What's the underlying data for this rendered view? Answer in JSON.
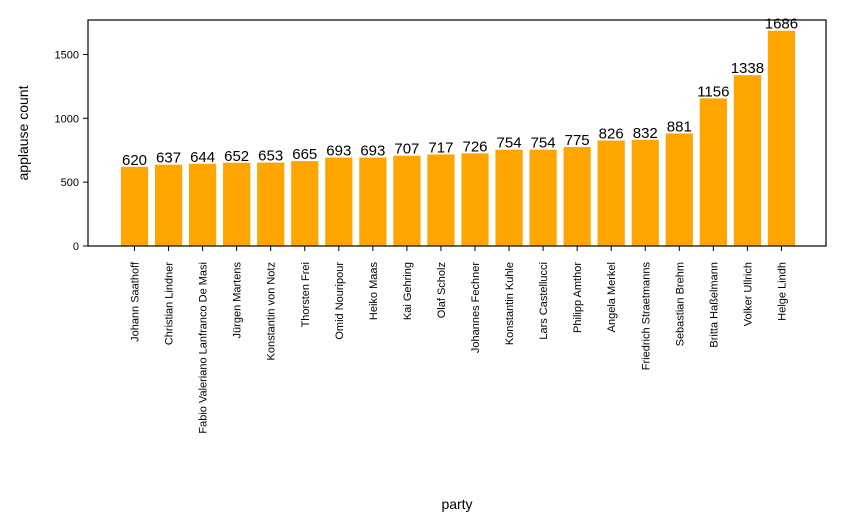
{
  "chart_data": {
    "type": "bar",
    "title": "",
    "xlabel": "party",
    "ylabel": "applause count",
    "ylim": [
      0,
      1770
    ],
    "yticks": [
      0,
      500,
      1000,
      1500
    ],
    "ytick_labels": [
      "0",
      "500",
      "1000",
      "1500"
    ],
    "grid": false,
    "bar_color": "#ffa500",
    "categories": [
      "Johann Saathoff",
      "Christian Lindner",
      "Fabio Valeriano Lanfranco De Masi",
      "Jürgen Martens",
      "Konstantin von Notz",
      "Thorsten Frei",
      "Omid Nouripour",
      "Heiko Maas",
      "Kai Gehring",
      "Olaf Scholz",
      "Johannes Fechner",
      "Konstantin Kuhle",
      "Lars Castellucci",
      "Philipp Amthor",
      "Angela Merkel",
      "Friedrich Straetmanns",
      "Sebastian Brehm",
      "Britta Haßelmann",
      "Volker Ullrich",
      "Helge Lindh"
    ],
    "values": [
      620,
      637,
      644,
      652,
      653,
      665,
      693,
      693,
      707,
      717,
      726,
      754,
      754,
      775,
      826,
      832,
      881,
      1156,
      1338,
      1686
    ],
    "data_labels": [
      "620",
      "637",
      "644",
      "652",
      "653",
      "665",
      "693",
      "693",
      "707",
      "717",
      "726",
      "754",
      "754",
      "775",
      "826",
      "832",
      "881",
      "1156",
      "1338",
      "1686"
    ]
  }
}
